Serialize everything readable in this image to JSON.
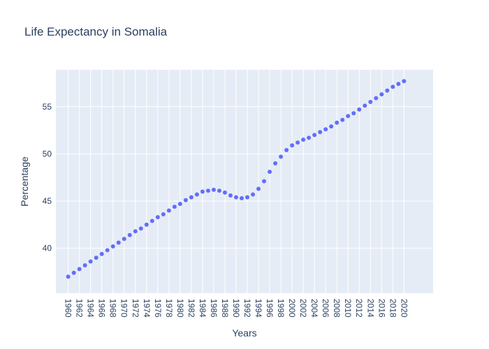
{
  "chart_data": {
    "type": "scatter",
    "title": "Life Expectancy in Somalia",
    "xlabel": "Years",
    "ylabel": "Percentage",
    "x": [
      1960,
      1961,
      1962,
      1963,
      1964,
      1965,
      1966,
      1967,
      1968,
      1969,
      1970,
      1971,
      1972,
      1973,
      1974,
      1975,
      1976,
      1977,
      1978,
      1979,
      1980,
      1981,
      1982,
      1983,
      1984,
      1985,
      1986,
      1987,
      1988,
      1989,
      1990,
      1991,
      1992,
      1993,
      1994,
      1995,
      1996,
      1997,
      1998,
      1999,
      2000,
      2001,
      2002,
      2003,
      2004,
      2005,
      2006,
      2007,
      2008,
      2009,
      2010,
      2011,
      2012,
      2013,
      2014,
      2015,
      2016,
      2017,
      2018,
      2019,
      2020
    ],
    "y": [
      37.0,
      37.4,
      37.8,
      38.2,
      38.6,
      39.0,
      39.4,
      39.8,
      40.2,
      40.6,
      41.0,
      41.4,
      41.8,
      42.1,
      42.5,
      42.9,
      43.3,
      43.6,
      44.0,
      44.4,
      44.7,
      45.1,
      45.4,
      45.7,
      46.0,
      46.1,
      46.2,
      46.1,
      45.9,
      45.6,
      45.4,
      45.3,
      45.4,
      45.7,
      46.3,
      47.1,
      48.1,
      49.0,
      49.7,
      50.4,
      50.9,
      51.2,
      51.5,
      51.7,
      52.0,
      52.3,
      52.6,
      52.9,
      53.3,
      53.6,
      54.0,
      54.3,
      54.7,
      55.1,
      55.5,
      55.9,
      56.3,
      56.7,
      57.1,
      57.4,
      57.7
    ],
    "xticks": [
      "1960",
      "1962",
      "1964",
      "1966",
      "1968",
      "1970",
      "1972",
      "1974",
      "1976",
      "1978",
      "1980",
      "1982",
      "1984",
      "1986",
      "1988",
      "1990",
      "1992",
      "1994",
      "1996",
      "1998",
      "2000",
      "2002",
      "2004",
      "2006",
      "2008",
      "2010",
      "2012",
      "2014",
      "2016",
      "2018",
      "2020"
    ],
    "yticks": [
      "40",
      "45",
      "50",
      "55"
    ],
    "xlim": [
      1957.8,
      2025.2
    ],
    "ylim": [
      35.25,
      58.9
    ],
    "grid": true,
    "colors": {
      "marker": "#636efa",
      "plot_background": "#e5ecf6",
      "grid": "#ffffff",
      "text": "#2a3f5f"
    }
  }
}
